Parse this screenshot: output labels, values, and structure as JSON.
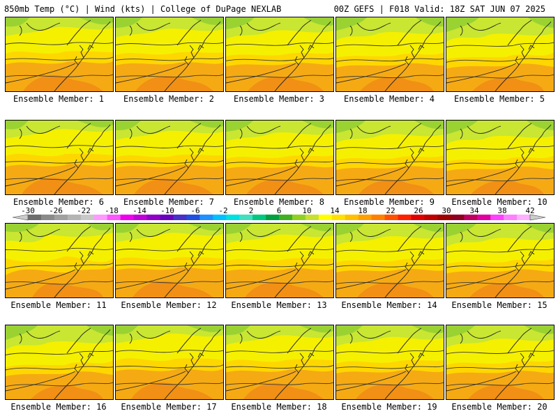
{
  "header": {
    "left": "850mb Temp (°C) | Wind (kts) | College of DuPage NEXLAB",
    "right": "00Z GEFS | F018 Valid: 18Z SAT JUN 07 2025"
  },
  "panels": [
    {
      "label": "Ensemble Member: 1"
    },
    {
      "label": "Ensemble Member: 2"
    },
    {
      "label": "Ensemble Member: 3"
    },
    {
      "label": "Ensemble Member: 4"
    },
    {
      "label": "Ensemble Member: 5"
    },
    {
      "label": "Ensemble Member: 6"
    },
    {
      "label": "Ensemble Member: 7"
    },
    {
      "label": "Ensemble Member: 8"
    },
    {
      "label": "Ensemble Member: 9"
    },
    {
      "label": "Ensemble Member: 10"
    },
    {
      "label": "Ensemble Member: 11"
    },
    {
      "label": "Ensemble Member: 12"
    },
    {
      "label": "Ensemble Member: 13"
    },
    {
      "label": "Ensemble Member: 14"
    },
    {
      "label": "Ensemble Member: 15"
    },
    {
      "label": "Ensemble Member: 16"
    },
    {
      "label": "Ensemble Member: 17"
    },
    {
      "label": "Ensemble Member: 18"
    },
    {
      "label": "Ensemble Member: 19"
    },
    {
      "label": "Ensemble Member: 20"
    }
  ],
  "colorbar": {
    "tick_labels": [
      "-30",
      "-26",
      "-22",
      "-18",
      "-14",
      "-10",
      "-6",
      "-2",
      "2",
      "6",
      "10",
      "14",
      "18",
      "22",
      "26",
      "30",
      "34",
      "38",
      "42"
    ],
    "colors": [
      "#6e6e6e",
      "#8a8a8a",
      "#a0a0a0",
      "#b4b4b4",
      "#c8c8c8",
      "#ff99ff",
      "#ff55ff",
      "#ee00ee",
      "#c000d8",
      "#9000c8",
      "#6a00c0",
      "#4830c8",
      "#2050e0",
      "#1e90ff",
      "#00c0ff",
      "#00e0e0",
      "#40e0c0",
      "#00c880",
      "#00a040",
      "#40b020",
      "#90d020",
      "#c8e030",
      "#ffff00",
      "#ffe000",
      "#ffc000",
      "#ffa000",
      "#ff8000",
      "#ff5000",
      "#ff2000",
      "#e00000",
      "#c00000",
      "#a00000",
      "#900020",
      "#c00060",
      "#e000a0",
      "#ff40ff",
      "#ff80ff",
      "#ffb0ff"
    ],
    "arrow_color": "#cccccc"
  },
  "map_colors": {
    "green": "#9ad232",
    "yellow_green": "#c8e632",
    "yellow": "#f5f000",
    "gold": "#ffd700",
    "orange": "#f5aa14",
    "dark_orange": "#f08c14",
    "contour": "#3a3a3a"
  }
}
